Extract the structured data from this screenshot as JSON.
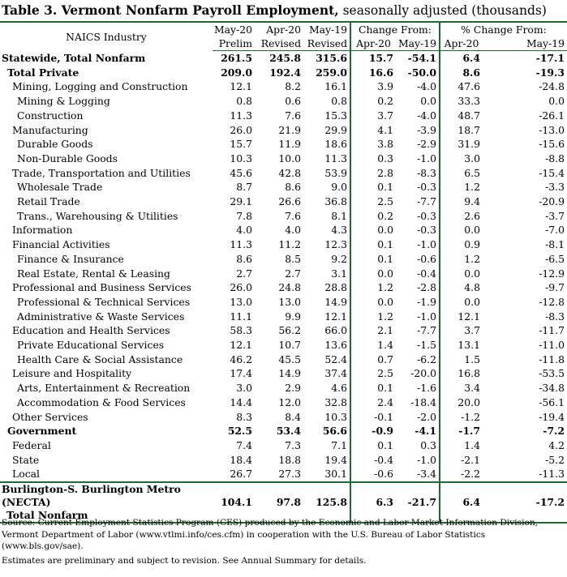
{
  "title": {
    "bold": "Table 3.  Vermont Nonfarm Payroll Employment,",
    "rest": " seasonally adjusted  (thousands)"
  },
  "header": {
    "naics": "NAICS Industry",
    "c1a": "May-20",
    "c1b": "Prelim",
    "c2a": "Apr-20",
    "c2b": "Revised",
    "c3a": "May-19",
    "c3b": "Revised",
    "change_from": "Change From:",
    "pct_change_from": "% Change From:",
    "ch_apr": "Apr-20",
    "ch_may": "May-19",
    "pc_apr": "Apr-20",
    "pc_may": "May-19"
  },
  "rows": [
    {
      "label": "Statewide, Total Nonfarm",
      "v": [
        "261.5",
        "245.8",
        "315.6",
        "15.7",
        "-54.1",
        "6.4",
        "-17.1"
      ]
    },
    {
      "label": "Total Private",
      "v": [
        "209.0",
        "192.4",
        "259.0",
        "16.6",
        "-50.0",
        "8.6",
        "-19.3"
      ]
    },
    {
      "label": "Mining, Logging and Construction",
      "v": [
        "12.1",
        "8.2",
        "16.1",
        "3.9",
        "-4.0",
        "47.6",
        "-24.8"
      ]
    },
    {
      "label": "Mining & Logging",
      "v": [
        "0.8",
        "0.6",
        "0.8",
        "0.2",
        "0.0",
        "33.3",
        "0.0"
      ]
    },
    {
      "label": "Construction",
      "v": [
        "11.3",
        "7.6",
        "15.3",
        "3.7",
        "-4.0",
        "48.7",
        "-26.1"
      ]
    },
    {
      "label": "Manufacturing",
      "v": [
        "26.0",
        "21.9",
        "29.9",
        "4.1",
        "-3.9",
        "18.7",
        "-13.0"
      ]
    },
    {
      "label": "Durable Goods",
      "v": [
        "15.7",
        "11.9",
        "18.6",
        "3.8",
        "-2.9",
        "31.9",
        "-15.6"
      ]
    },
    {
      "label": "Non-Durable Goods",
      "v": [
        "10.3",
        "10.0",
        "11.3",
        "0.3",
        "-1.0",
        "3.0",
        "-8.8"
      ]
    },
    {
      "label": "Trade, Transportation and Utilities",
      "v": [
        "45.6",
        "42.8",
        "53.9",
        "2.8",
        "-8.3",
        "6.5",
        "-15.4"
      ]
    },
    {
      "label": "Wholesale Trade",
      "v": [
        "8.7",
        "8.6",
        "9.0",
        "0.1",
        "-0.3",
        "1.2",
        "-3.3"
      ]
    },
    {
      "label": "Retail Trade",
      "v": [
        "29.1",
        "26.6",
        "36.8",
        "2.5",
        "-7.7",
        "9.4",
        "-20.9"
      ]
    },
    {
      "label": "Trans., Warehousing & Utilities",
      "v": [
        "7.8",
        "7.6",
        "8.1",
        "0.2",
        "-0.3",
        "2.6",
        "-3.7"
      ]
    },
    {
      "label": "Information",
      "v": [
        "4.0",
        "4.0",
        "4.3",
        "0.0",
        "-0.3",
        "0.0",
        "-7.0"
      ]
    },
    {
      "label": "Financial Activities",
      "v": [
        "11.3",
        "11.2",
        "12.3",
        "0.1",
        "-1.0",
        "0.9",
        "-8.1"
      ]
    },
    {
      "label": "Finance & Insurance",
      "v": [
        "8.6",
        "8.5",
        "9.2",
        "0.1",
        "-0.6",
        "1.2",
        "-6.5"
      ]
    },
    {
      "label": "Real Estate, Rental & Leasing",
      "v": [
        "2.7",
        "2.7",
        "3.1",
        "0.0",
        "-0.4",
        "0.0",
        "-12.9"
      ]
    },
    {
      "label": "Professional and Business Services",
      "v": [
        "26.0",
        "24.8",
        "28.8",
        "1.2",
        "-2.8",
        "4.8",
        "-9.7"
      ]
    },
    {
      "label": "Professional & Technical Services",
      "v": [
        "13.0",
        "13.0",
        "14.9",
        "0.0",
        "-1.9",
        "0.0",
        "-12.8"
      ]
    },
    {
      "label": "Administrative & Waste Services",
      "v": [
        "11.1",
        "9.9",
        "12.1",
        "1.2",
        "-1.0",
        "12.1",
        "-8.3"
      ]
    },
    {
      "label": "Education and Health Services",
      "v": [
        "58.3",
        "56.2",
        "66.0",
        "2.1",
        "-7.7",
        "3.7",
        "-11.7"
      ]
    },
    {
      "label": "Private Educational Services",
      "v": [
        "12.1",
        "10.7",
        "13.6",
        "1.4",
        "-1.5",
        "13.1",
        "-11.0"
      ]
    },
    {
      "label": "Health Care & Social Assistance",
      "v": [
        "46.2",
        "45.5",
        "52.4",
        "0.7",
        "-6.2",
        "1.5",
        "-11.8"
      ]
    },
    {
      "label": "Leisure and Hospitality",
      "v": [
        "17.4",
        "14.9",
        "37.4",
        "2.5",
        "-20.0",
        "16.8",
        "-53.5"
      ]
    },
    {
      "label": "Arts, Entertainment & Recreation",
      "v": [
        "3.0",
        "2.9",
        "4.6",
        "0.1",
        "-1.6",
        "3.4",
        "-34.8"
      ]
    },
    {
      "label": "Accommodation & Food Services",
      "v": [
        "14.4",
        "12.0",
        "32.8",
        "2.4",
        "-18.4",
        "20.0",
        "-56.1"
      ]
    },
    {
      "label": "Other Services",
      "v": [
        "8.3",
        "8.4",
        "10.3",
        "-0.1",
        "-2.0",
        "-1.2",
        "-19.4"
      ]
    },
    {
      "label": "Government",
      "v": [
        "52.5",
        "53.4",
        "56.6",
        "-0.9",
        "-4.1",
        "-1.7",
        "-7.2"
      ]
    },
    {
      "label": "Federal",
      "v": [
        "7.4",
        "7.3",
        "7.1",
        "0.1",
        "0.3",
        "1.4",
        "4.2"
      ]
    },
    {
      "label": "State",
      "v": [
        "18.4",
        "18.8",
        "19.4",
        "-0.4",
        "-1.0",
        "-2.1",
        "-5.2"
      ]
    },
    {
      "label": "Local",
      "v": [
        "26.7",
        "27.3",
        "30.1",
        "-0.6",
        "-3.4",
        "-2.2",
        "-11.3"
      ]
    }
  ],
  "metro": {
    "label1": "Burlington-S. Burlington Metro (NECTA)",
    "label2": "Total Nonfarm",
    "v": [
      "104.1",
      "97.8",
      "125.8",
      "6.3",
      "-21.7",
      "6.4",
      "-17.2"
    ]
  },
  "source": "Source: Current Employment Statistics Program (CES) produced by the Economic and Labor Market Information Division, Vermont Department of Labor (www.vtlmi.info/ces.cfm) in cooperation with the U.S. Bureau of Labor Statistics (www.bls.gov/sae).",
  "note": "Estimates are preliminary and subject to revision. See Annual Summary for details."
}
